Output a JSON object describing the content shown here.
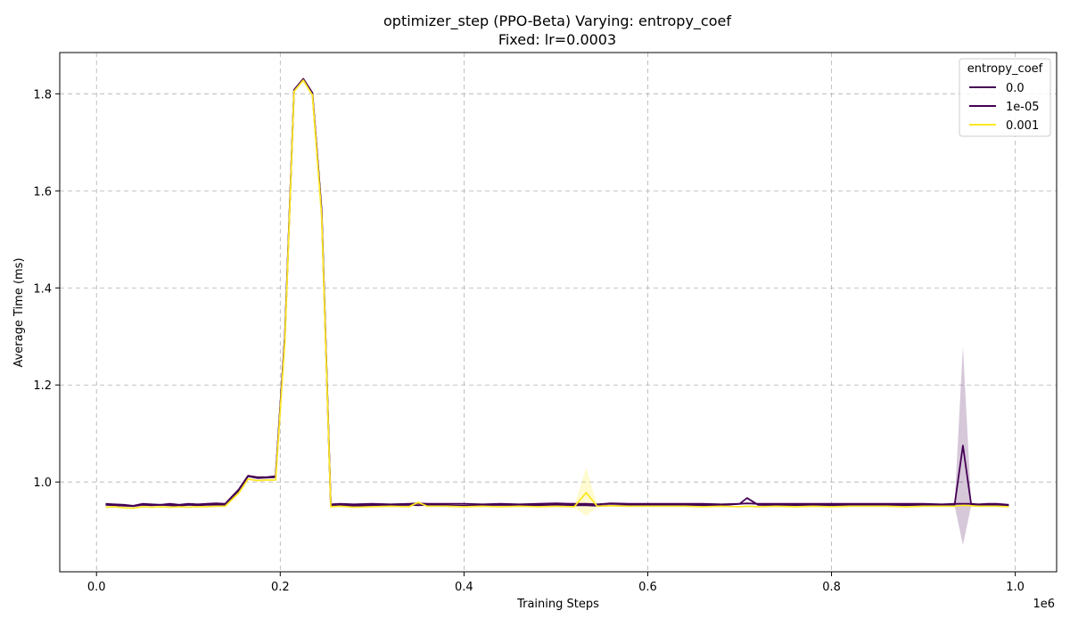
{
  "chart_data": {
    "type": "line",
    "title": "optimizer_step (PPO-Beta) Varying: entropy_coef",
    "subtitle": "Fixed: lr=0.0003",
    "xlabel": "Training Steps",
    "ylabel": "Average Time (ms)",
    "x_offset_label": "1e6",
    "xlim": [
      -0.04,
      1.045
    ],
    "ylim": [
      0.815,
      1.885
    ],
    "xticks": [
      0.0,
      0.2,
      0.4,
      0.6,
      0.8,
      1.0
    ],
    "xtick_labels": [
      "0.0",
      "0.2",
      "0.4",
      "0.6",
      "0.8",
      "1.0"
    ],
    "yticks": [
      1.0,
      1.2,
      1.4,
      1.6,
      1.8
    ],
    "ytick_labels": [
      "1.0",
      "1.2",
      "1.4",
      "1.6",
      "1.8"
    ],
    "grid": true,
    "legend": {
      "title": "entropy_coef",
      "placement": "top-right"
    },
    "x": [
      0.01,
      0.02,
      0.03,
      0.04,
      0.05,
      0.06,
      0.07,
      0.08,
      0.09,
      0.1,
      0.11,
      0.12,
      0.13,
      0.14,
      0.155,
      0.165,
      0.175,
      0.185,
      0.195,
      0.205,
      0.215,
      0.225,
      0.235,
      0.245,
      0.255,
      0.265,
      0.28,
      0.3,
      0.32,
      0.34,
      0.35,
      0.36,
      0.38,
      0.4,
      0.42,
      0.44,
      0.46,
      0.48,
      0.5,
      0.52,
      0.533,
      0.545,
      0.56,
      0.58,
      0.6,
      0.62,
      0.64,
      0.66,
      0.68,
      0.7,
      0.708,
      0.72,
      0.74,
      0.76,
      0.78,
      0.8,
      0.82,
      0.84,
      0.86,
      0.88,
      0.9,
      0.92,
      0.934,
      0.943,
      0.952,
      0.96,
      0.97,
      0.98,
      0.993
    ],
    "series": [
      {
        "name": "0.0",
        "color": "#440154",
        "values": [
          0.955,
          0.954,
          0.953,
          0.951,
          0.955,
          0.954,
          0.953,
          0.955,
          0.953,
          0.955,
          0.954,
          0.955,
          0.956,
          0.955,
          0.985,
          1.013,
          1.01,
          1.01,
          1.012,
          1.3,
          1.808,
          1.83,
          1.8,
          1.56,
          0.954,
          0.955,
          0.954,
          0.955,
          0.954,
          0.955,
          0.956,
          0.955,
          0.955,
          0.955,
          0.954,
          0.955,
          0.954,
          0.955,
          0.956,
          0.955,
          0.955,
          0.954,
          0.956,
          0.955,
          0.955,
          0.955,
          0.955,
          0.955,
          0.954,
          0.955,
          0.956,
          0.955,
          0.955,
          0.955,
          0.955,
          0.955,
          0.955,
          0.955,
          0.955,
          0.955,
          0.955,
          0.954,
          0.955,
          0.955,
          0.955,
          0.954,
          0.955,
          0.955,
          0.953
        ]
      },
      {
        "name": "1e-05",
        "color": "#440154",
        "band": {
          "color": "#440154",
          "index": 63,
          "low": 0.87,
          "high": 1.28
        },
        "values": [
          0.953,
          0.952,
          0.951,
          0.95,
          0.953,
          0.952,
          0.953,
          0.952,
          0.951,
          0.953,
          0.952,
          0.953,
          0.953,
          0.953,
          0.982,
          1.012,
          1.008,
          1.009,
          1.01,
          1.3,
          1.808,
          1.831,
          1.802,
          1.56,
          0.951,
          0.952,
          0.951,
          0.952,
          0.952,
          0.953,
          0.952,
          0.953,
          0.952,
          0.951,
          0.952,
          0.953,
          0.952,
          0.952,
          0.953,
          0.952,
          0.952,
          0.951,
          0.952,
          0.952,
          0.952,
          0.952,
          0.952,
          0.952,
          0.952,
          0.955,
          0.967,
          0.953,
          0.952,
          0.952,
          0.952,
          0.952,
          0.952,
          0.952,
          0.952,
          0.952,
          0.952,
          0.952,
          0.953,
          1.075,
          0.953,
          0.952,
          0.952,
          0.952,
          0.951
        ]
      },
      {
        "name": "0.001",
        "color": "#fde725",
        "band": {
          "color": "#fde725",
          "index": 40,
          "low": 0.93,
          "high": 1.03
        },
        "values": [
          0.948,
          0.949,
          0.947,
          0.946,
          0.949,
          0.948,
          0.949,
          0.948,
          0.949,
          0.948,
          0.949,
          0.949,
          0.95,
          0.95,
          0.978,
          1.006,
          1.003,
          1.004,
          1.004,
          1.29,
          1.805,
          1.828,
          1.797,
          1.55,
          0.949,
          0.95,
          0.948,
          0.949,
          0.95,
          0.949,
          0.958,
          0.95,
          0.95,
          0.949,
          0.95,
          0.949,
          0.95,
          0.949,
          0.95,
          0.949,
          0.978,
          0.95,
          0.951,
          0.95,
          0.95,
          0.95,
          0.95,
          0.949,
          0.95,
          0.949,
          0.95,
          0.949,
          0.95,
          0.949,
          0.95,
          0.949,
          0.95,
          0.95,
          0.95,
          0.949,
          0.95,
          0.95,
          0.95,
          0.952,
          0.951,
          0.95,
          0.95,
          0.95,
          0.949
        ]
      }
    ]
  }
}
